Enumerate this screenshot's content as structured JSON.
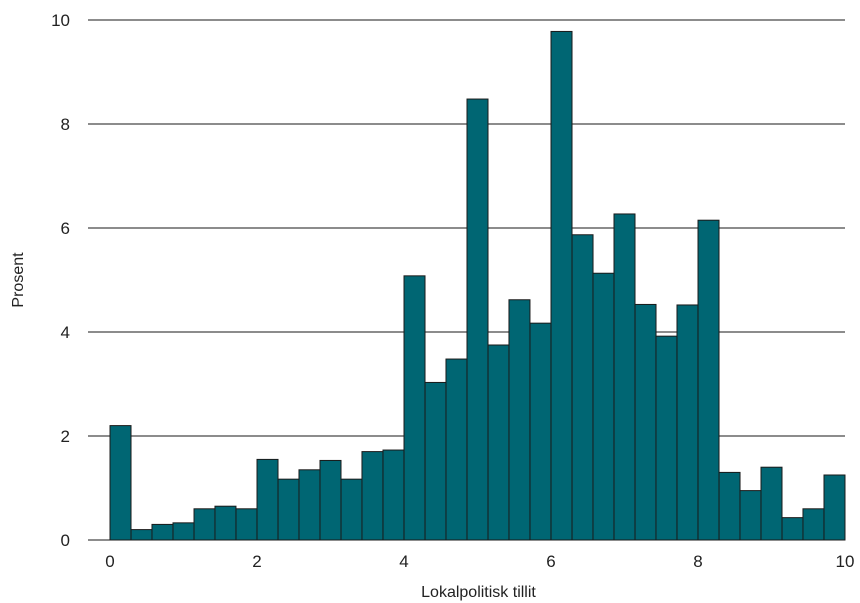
{
  "chart_data": {
    "type": "bar",
    "title": "",
    "xlabel": "Lokalpolitisk tillit",
    "ylabel": "Prosent",
    "xlim": [
      0,
      10
    ],
    "ylim": [
      0,
      10
    ],
    "xticks": [
      0,
      2,
      4,
      6,
      8,
      10
    ],
    "yticks": [
      0,
      2,
      4,
      6,
      8,
      10
    ],
    "grid": "horizontal",
    "bar_width": 0.2857,
    "x": [
      0.143,
      0.429,
      0.714,
      1.0,
      1.286,
      1.571,
      1.857,
      2.143,
      2.429,
      2.714,
      3.0,
      3.286,
      3.571,
      3.857,
      4.143,
      4.429,
      4.714,
      5.0,
      5.286,
      5.571,
      5.857,
      6.143,
      6.429,
      6.714,
      7.0,
      7.286,
      7.571,
      7.857,
      8.143,
      8.429,
      8.714,
      9.0,
      9.286,
      9.571,
      9.857
    ],
    "values": [
      2.2,
      0.2,
      0.3,
      0.33,
      0.6,
      0.65,
      0.6,
      1.55,
      1.17,
      1.35,
      1.53,
      1.17,
      1.7,
      1.73,
      5.08,
      3.03,
      3.48,
      8.48,
      3.75,
      4.62,
      4.17,
      9.78,
      5.87,
      5.13,
      6.27,
      4.53,
      3.92,
      4.52,
      6.15,
      1.3,
      0.95,
      1.4,
      0.43,
      0.6,
      1.25
    ],
    "colors": {
      "bar": "#006673",
      "bar_edge": "#1a1a1a",
      "grid": "#1a1a1a"
    }
  }
}
